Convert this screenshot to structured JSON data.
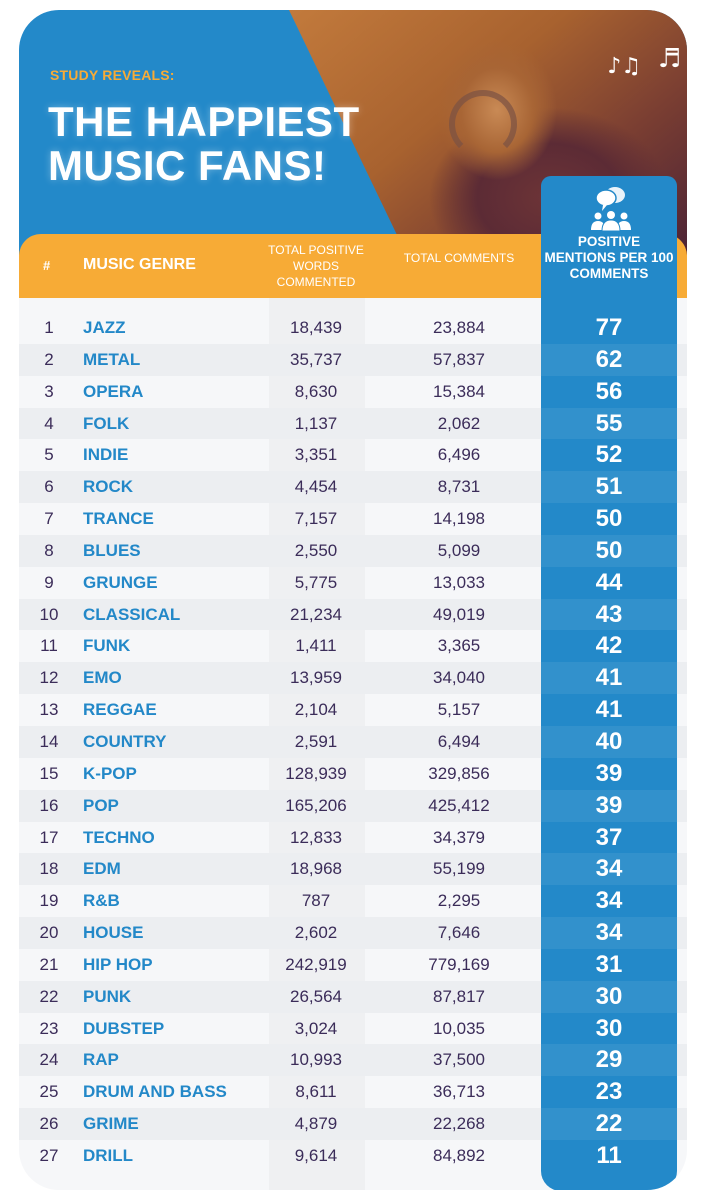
{
  "header": {
    "kicker": "STUDY REVEALS:",
    "title_line1": "THE HAPPIEST",
    "title_line2": "MUSIC FANS!"
  },
  "columns": {
    "rank": "#",
    "genre": "MUSIC GENRE",
    "positive_words": "TOTAL POSITIVE WORDS COMMENTED",
    "total_comments": "TOTAL COMMENTS",
    "positive_mentions": "POSITIVE MENTIONS PER 100 COMMENTS"
  },
  "icons": {
    "column_icon": "people-speech-bubbles-icon",
    "decor": "music-notes-icon"
  },
  "colors": {
    "primary_blue": "#2389c9",
    "accent_orange": "#f7ab36",
    "text_dark": "#3b2c59"
  },
  "chart_data": {
    "type": "table",
    "title": "THE HAPPIEST MUSIC FANS!",
    "subtitle": "STUDY REVEALS:",
    "headers": [
      "#",
      "MUSIC GENRE",
      "TOTAL POSITIVE WORDS COMMENTED",
      "TOTAL COMMENTS",
      "POSITIVE MENTIONS PER 100 COMMENTS"
    ],
    "rows": [
      {
        "rank": "1",
        "genre": "JAZZ",
        "positive_words": "18,439",
        "total_comments": "23,884",
        "per_100": "77"
      },
      {
        "rank": "2",
        "genre": "METAL",
        "positive_words": "35,737",
        "total_comments": "57,837",
        "per_100": "62"
      },
      {
        "rank": "3",
        "genre": "OPERA",
        "positive_words": "8,630",
        "total_comments": "15,384",
        "per_100": "56"
      },
      {
        "rank": "4",
        "genre": "FOLK",
        "positive_words": "1,137",
        "total_comments": "2,062",
        "per_100": "55"
      },
      {
        "rank": "5",
        "genre": "INDIE",
        "positive_words": "3,351",
        "total_comments": "6,496",
        "per_100": "52"
      },
      {
        "rank": "6",
        "genre": "ROCK",
        "positive_words": "4,454",
        "total_comments": "8,731",
        "per_100": "51"
      },
      {
        "rank": "7",
        "genre": "TRANCE",
        "positive_words": "7,157",
        "total_comments": "14,198",
        "per_100": "50"
      },
      {
        "rank": "8",
        "genre": "BLUES",
        "positive_words": "2,550",
        "total_comments": "5,099",
        "per_100": "50"
      },
      {
        "rank": "9",
        "genre": "GRUNGE",
        "positive_words": "5,775",
        "total_comments": "13,033",
        "per_100": "44"
      },
      {
        "rank": "10",
        "genre": "CLASSICAL",
        "positive_words": "21,234",
        "total_comments": "49,019",
        "per_100": "43"
      },
      {
        "rank": "11",
        "genre": "FUNK",
        "positive_words": "1,411",
        "total_comments": "3,365",
        "per_100": "42"
      },
      {
        "rank": "12",
        "genre": "EMO",
        "positive_words": "13,959",
        "total_comments": "34,040",
        "per_100": "41"
      },
      {
        "rank": "13",
        "genre": "REGGAE",
        "positive_words": "2,104",
        "total_comments": "5,157",
        "per_100": "41"
      },
      {
        "rank": "14",
        "genre": "COUNTRY",
        "positive_words": "2,591",
        "total_comments": "6,494",
        "per_100": "40"
      },
      {
        "rank": "15",
        "genre": "K-POP",
        "positive_words": "128,939",
        "total_comments": "329,856",
        "per_100": "39"
      },
      {
        "rank": "16",
        "genre": "POP",
        "positive_words": "165,206",
        "total_comments": "425,412",
        "per_100": "39"
      },
      {
        "rank": "17",
        "genre": "TECHNO",
        "positive_words": "12,833",
        "total_comments": "34,379",
        "per_100": "37"
      },
      {
        "rank": "18",
        "genre": "EDM",
        "positive_words": "18,968",
        "total_comments": "55,199",
        "per_100": "34"
      },
      {
        "rank": "19",
        "genre": "R&B",
        "positive_words": "787",
        "total_comments": "2,295",
        "per_100": "34"
      },
      {
        "rank": "20",
        "genre": "HOUSE",
        "positive_words": "2,602",
        "total_comments": "7,646",
        "per_100": "34"
      },
      {
        "rank": "21",
        "genre": "HIP HOP",
        "positive_words": "242,919",
        "total_comments": "779,169",
        "per_100": "31"
      },
      {
        "rank": "22",
        "genre": "PUNK",
        "positive_words": "26,564",
        "total_comments": "87,817",
        "per_100": "30"
      },
      {
        "rank": "23",
        "genre": "DUBSTEP",
        "positive_words": "3,024",
        "total_comments": "10,035",
        "per_100": "30"
      },
      {
        "rank": "24",
        "genre": "RAP",
        "positive_words": "10,993",
        "total_comments": "37,500",
        "per_100": "29"
      },
      {
        "rank": "25",
        "genre": "DRUM AND BASS",
        "positive_words": "8,611",
        "total_comments": "36,713",
        "per_100": "23"
      },
      {
        "rank": "26",
        "genre": "GRIME",
        "positive_words": "4,879",
        "total_comments": "22,268",
        "per_100": "22"
      },
      {
        "rank": "27",
        "genre": "DRILL",
        "positive_words": "9,614",
        "total_comments": "84,892",
        "per_100": "11"
      }
    ]
  }
}
